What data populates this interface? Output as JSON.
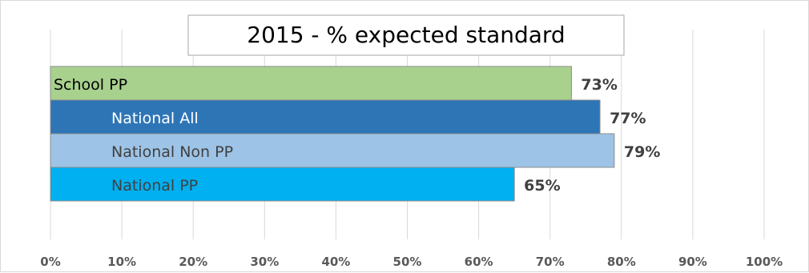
{
  "chart_data": {
    "type": "bar",
    "orientation": "horizontal",
    "title": "2015 - % expected standard",
    "categories": [
      "School PP",
      "National All",
      "National Non PP",
      "National PP"
    ],
    "values": [
      73,
      77,
      79,
      65
    ],
    "value_labels": [
      "73%",
      "77%",
      "79%",
      "65%"
    ],
    "colors": [
      "#a9d18e",
      "#2e75b6",
      "#9dc3e6",
      "#00b0f0"
    ],
    "label_colors": [
      "#000000",
      "#ffffff",
      "#404040",
      "#404040"
    ],
    "xlim": [
      0,
      100
    ],
    "x_ticks": [
      0,
      10,
      20,
      30,
      40,
      50,
      60,
      70,
      80,
      90,
      100
    ],
    "x_tick_labels": [
      "0%",
      "10%",
      "20%",
      "30%",
      "40%",
      "50%",
      "60%",
      "70%",
      "80%",
      "90%",
      "100%"
    ],
    "grid": true,
    "xlabel": "",
    "ylabel": ""
  }
}
